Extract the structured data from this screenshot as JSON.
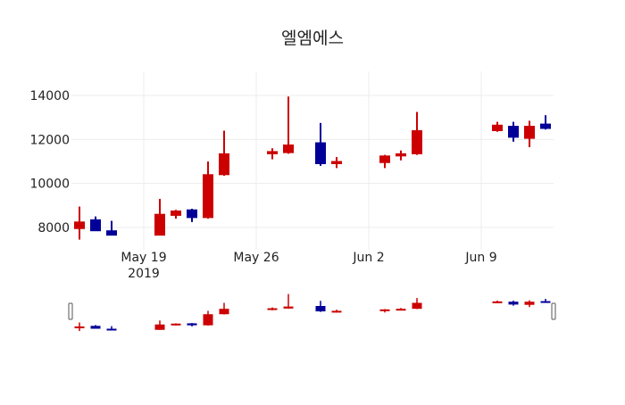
{
  "chart_data": {
    "type": "candlestick",
    "title": "엘엠에스",
    "xlabel": "",
    "ylabel": "",
    "ylim": [
      7300,
      14200
    ],
    "yticks": [
      8000,
      10000,
      12000,
      14000
    ],
    "ytick_labels": [
      "8000",
      "10000",
      "12000",
      "14000"
    ],
    "xticks": [
      "2019-05-19",
      "2019-05-26",
      "2019-06-02",
      "2019-06-09"
    ],
    "xtick_labels": [
      "May 19\n2019",
      "May 26",
      "Jun 2",
      "Jun 9"
    ],
    "xrange": [
      "2019-05-14T12:00",
      "2019-06-13T20:00"
    ],
    "grid": true,
    "legend": false,
    "rangeslider": true,
    "increasing_color": "#cc0000",
    "decreasing_color": "#000099",
    "series": [
      {
        "date": "2019-05-15",
        "open": 7950,
        "high": 8950,
        "low": 7450,
        "close": 8250
      },
      {
        "date": "2019-05-16",
        "open": 8350,
        "high": 8500,
        "low": 7850,
        "close": 7850
      },
      {
        "date": "2019-05-17",
        "open": 7850,
        "high": 8300,
        "low": 7650,
        "close": 7650
      },
      {
        "date": "2019-05-20",
        "open": 7650,
        "high": 9300,
        "low": 7650,
        "close": 8600
      },
      {
        "date": "2019-05-21",
        "open": 8550,
        "high": 8800,
        "low": 8400,
        "close": 8750
      },
      {
        "date": "2019-05-22",
        "open": 8800,
        "high": 8850,
        "low": 8250,
        "close": 8450
      },
      {
        "date": "2019-05-23",
        "open": 8450,
        "high": 11000,
        "low": 8400,
        "close": 10400
      },
      {
        "date": "2019-05-24",
        "open": 10400,
        "high": 12400,
        "low": 10350,
        "close": 11350
      },
      {
        "date": "2019-05-27",
        "open": 11350,
        "high": 11600,
        "low": 11100,
        "close": 11450
      },
      {
        "date": "2019-05-28",
        "open": 11400,
        "high": 13950,
        "low": 11350,
        "close": 11750
      },
      {
        "date": "2019-05-30",
        "open": 11850,
        "high": 12750,
        "low": 10800,
        "close": 10900
      },
      {
        "date": "2019-05-31",
        "open": 10900,
        "high": 11200,
        "low": 10700,
        "close": 11000
      },
      {
        "date": "2019-06-03",
        "open": 10950,
        "high": 11300,
        "low": 10700,
        "close": 11250
      },
      {
        "date": "2019-06-04",
        "open": 11250,
        "high": 11500,
        "low": 11050,
        "close": 11350
      },
      {
        "date": "2019-06-05",
        "open": 11350,
        "high": 13250,
        "low": 11300,
        "close": 12400
      },
      {
        "date": "2019-06-10",
        "open": 12400,
        "high": 12800,
        "low": 12350,
        "close": 12650
      },
      {
        "date": "2019-06-11",
        "open": 12600,
        "high": 12800,
        "low": 11900,
        "close": 12100
      },
      {
        "date": "2019-06-12",
        "open": 12050,
        "high": 12850,
        "low": 11650,
        "close": 12600
      },
      {
        "date": "2019-06-13",
        "open": 12700,
        "high": 13100,
        "low": 12450,
        "close": 12500
      }
    ]
  }
}
